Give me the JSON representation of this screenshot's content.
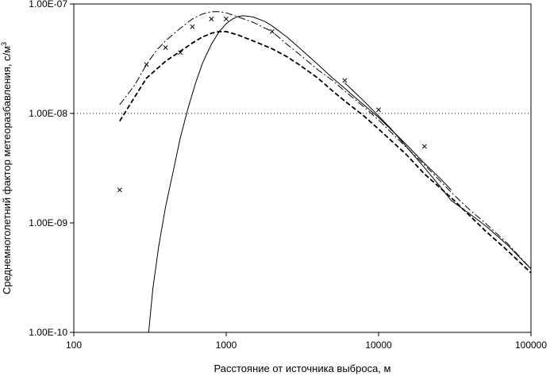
{
  "chart_data": {
    "type": "line",
    "title": "",
    "xlabel": "Расстояние от источника выброса, м",
    "ylabel": "Среднемноголетний фактор метеоразбавления, с/м",
    "ylabel_superscript": "3",
    "x_scale": "log",
    "y_scale": "log",
    "xlim": [
      100,
      100000
    ],
    "ylim": [
      1e-10,
      1e-07
    ],
    "x_ticks": [
      100,
      1000,
      10000,
      100000
    ],
    "x_tick_labels": [
      "100",
      "1000",
      "10000",
      "100000"
    ],
    "y_ticks": [
      1e-10,
      1e-09,
      1e-08,
      1e-07
    ],
    "y_tick_labels": [
      "1.00E-10",
      "1.00E-09",
      "1.00E-08",
      "1.00E-07"
    ],
    "grid": false,
    "reference_line": {
      "y": 1e-08,
      "style": "dotted"
    },
    "series": [
      {
        "style": "solid",
        "color": "#000000",
        "x": [
          310,
          330,
          360,
          400,
          450,
          500,
          560,
          630,
          700,
          800,
          900,
          1000,
          1100,
          1200,
          1300,
          1500,
          1800,
          2000,
          2500,
          3000,
          4000,
          5000,
          6000,
          7000,
          8000,
          10000,
          15000,
          20000,
          25000,
          30000
        ],
        "y": [
          1e-10,
          2.5e-10,
          6e-10,
          1.4e-09,
          3e-09,
          6e-09,
          1.1e-08,
          1.9e-08,
          2.9e-08,
          4.3e-08,
          5.6e-08,
          6.6e-08,
          7.3e-08,
          7.7e-08,
          7.8e-08,
          7.6e-08,
          6.9e-08,
          6.3e-08,
          5e-08,
          4e-08,
          2.8e-08,
          2.1e-08,
          1.7e-08,
          1.4e-08,
          1.2e-08,
          9.2e-09,
          5.3e-09,
          3.5e-09,
          2.6e-09,
          2e-09
        ]
      },
      {
        "style": "solid",
        "color": "#000000",
        "x": [
          6000,
          7000,
          8000,
          10000,
          12000,
          15000,
          20000,
          25000,
          30000,
          40000,
          50000,
          70000,
          100000
        ],
        "y": [
          1.9e-08,
          1.55e-08,
          1.3e-08,
          9.5e-09,
          7.3e-09,
          5.1e-09,
          3.2e-09,
          2.2e-09,
          1.6e-09,
          1.2e-09,
          9.5e-10,
          6.3e-10,
          3.8e-10
        ]
      },
      {
        "style": "dash-dot",
        "color": "#000000",
        "x": [
          200,
          250,
          300,
          350,
          400,
          500,
          600,
          700,
          800,
          900,
          1000,
          1200,
          1500,
          2000,
          2500,
          3000,
          4000,
          5000,
          6000,
          8000,
          10000,
          15000,
          20000,
          30000,
          40000,
          50000,
          70000,
          100000
        ],
        "y": [
          1.2e-08,
          1.8e-08,
          2.8e-08,
          3.8e-08,
          4.6e-08,
          6e-08,
          7.3e-08,
          8.1e-08,
          8.5e-08,
          8.5e-08,
          8.3e-08,
          7.6e-08,
          6.8e-08,
          5.6e-08,
          4.3e-08,
          3.5e-08,
          2.5e-08,
          2e-08,
          1.6e-08,
          1.15e-08,
          8.7e-09,
          5e-09,
          3.4e-09,
          1.9e-09,
          1.3e-09,
          1e-09,
          6.5e-10,
          3.8e-10
        ]
      },
      {
        "style": "dashed",
        "color": "#000000",
        "x": [
          200,
          250,
          300,
          400,
          500,
          600,
          700,
          800,
          900,
          1000,
          1200,
          1500,
          2000,
          2500,
          3000,
          4000,
          5000,
          6000,
          8000,
          10000,
          15000,
          20000,
          30000,
          50000,
          70000,
          100000
        ],
        "y": [
          8.5e-09,
          1.4e-08,
          2.1e-08,
          3e-08,
          3.7e-08,
          4.4e-08,
          5e-08,
          5.4e-08,
          5.6e-08,
          5.6e-08,
          5.2e-08,
          4.6e-08,
          3.9e-08,
          3.3e-08,
          2.8e-08,
          2.1e-08,
          1.6e-08,
          1.3e-08,
          9.5e-09,
          7.2e-09,
          4.3e-09,
          2.8e-09,
          1.7e-09,
          8.5e-10,
          5.6e-10,
          3.5e-10
        ]
      },
      {
        "style": "markers-x",
        "color": "#000000",
        "x": [
          200,
          300,
          400,
          500,
          600,
          800,
          1000,
          2000,
          6000,
          10000,
          20000
        ],
        "y": [
          2e-09,
          2.8e-08,
          4e-08,
          3.6e-08,
          6.2e-08,
          7.3e-08,
          7.3e-08,
          5.6e-08,
          2e-08,
          1.08e-08,
          5e-09
        ]
      }
    ]
  }
}
